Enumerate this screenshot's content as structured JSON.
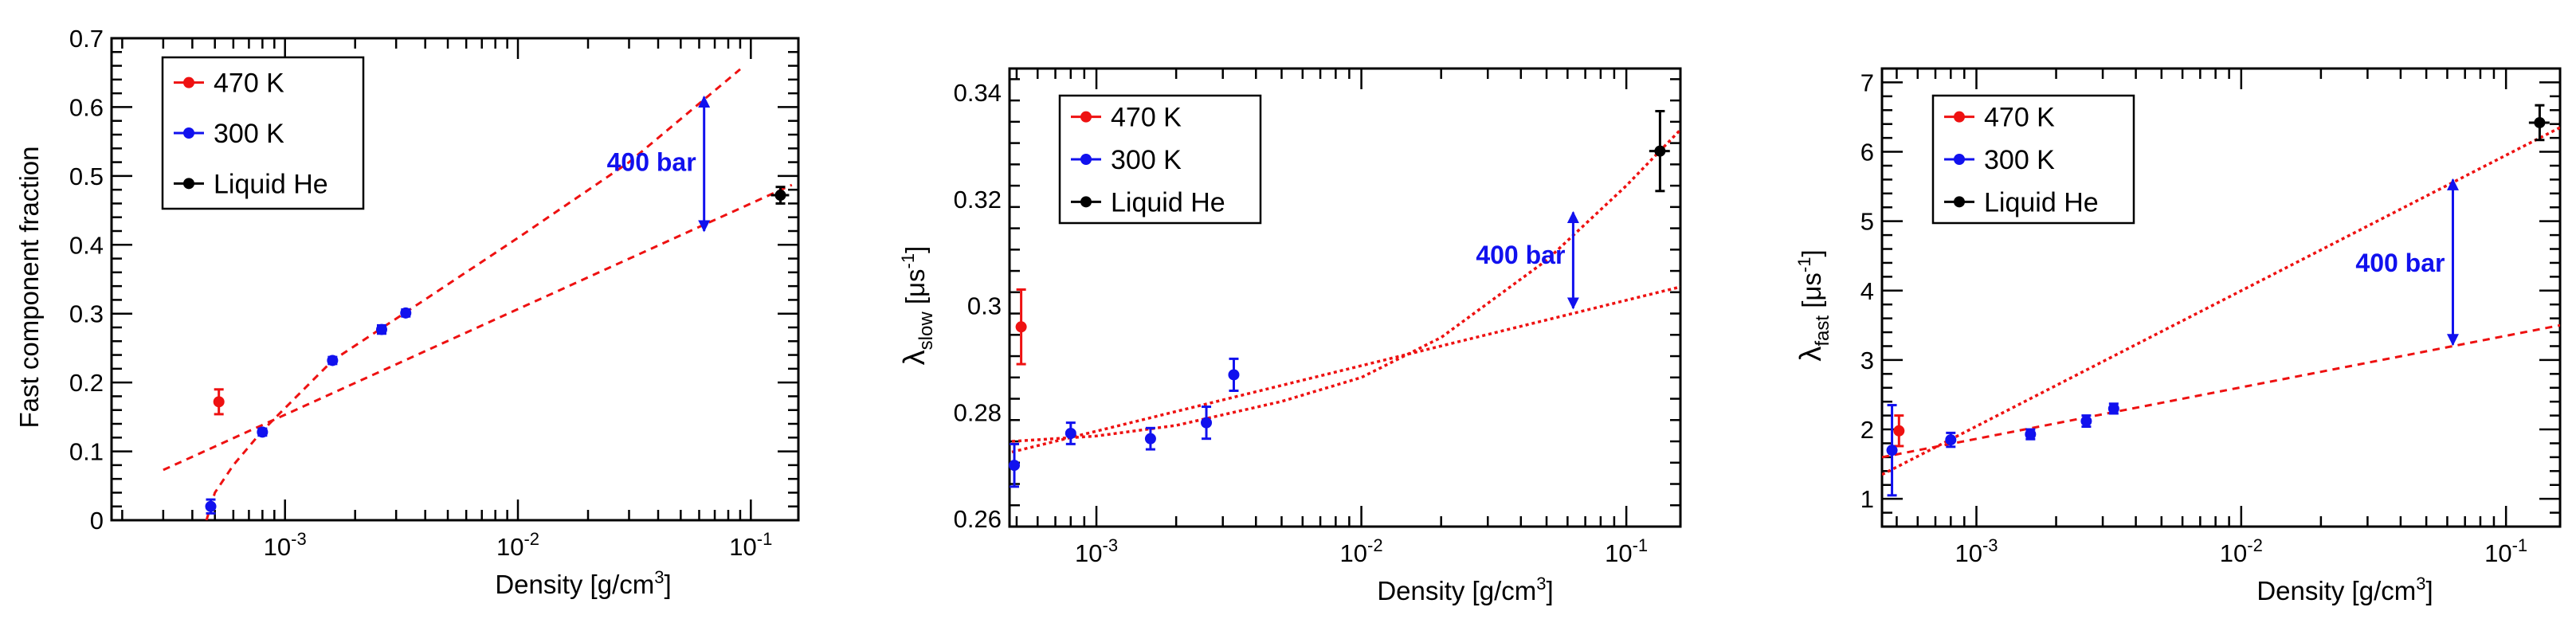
{
  "colors": {
    "red": "#ee1111",
    "blue": "#1111ee",
    "black": "#000000",
    "fit": "#ee1111",
    "arrow": "#1111ee"
  },
  "chart_data": [
    {
      "type": "scatter",
      "xlabel_main": "Density [g/cm",
      "xlabel_sup": "3",
      "xlabel_close": "]",
      "ylabel": "Fast component fraction",
      "xscale": "log",
      "xlim": [
        0.00018,
        0.16
      ],
      "ylim": [
        0,
        0.7
      ],
      "yticks": [
        0,
        0.1,
        0.2,
        0.3,
        0.4,
        0.5,
        0.6,
        0.7
      ],
      "ytick_labels": [
        "0",
        "0.1",
        "0.2",
        "0.3",
        "0.4",
        "0.5",
        "0.6",
        "0.7"
      ],
      "xtick_labels": [
        {
          "base": "10",
          "exp": "-3",
          "value": 0.001
        },
        {
          "base": "10",
          "exp": "-2",
          "value": 0.01
        },
        {
          "base": "10",
          "exp": "-1",
          "value": 0.1
        }
      ],
      "legend": [
        {
          "label": "470 K",
          "color": "#ee1111"
        },
        {
          "label": "300 K",
          "color": "#1111ee"
        },
        {
          "label": "Liquid He",
          "color": "#000000"
        }
      ],
      "series": [
        {
          "name": "470 K",
          "color": "#ee1111",
          "points": [
            {
              "x": 0.00052,
              "y": 0.172,
              "ey": 0.018
            }
          ]
        },
        {
          "name": "300 K",
          "color": "#1111ee",
          "points": [
            {
              "x": 0.00048,
              "y": 0.02,
              "ey": 0.01
            },
            {
              "x": 0.0008,
              "y": 0.128,
              "ey": 0.005
            },
            {
              "x": 0.0016,
              "y": 0.232,
              "ey": 0.005
            },
            {
              "x": 0.0026,
              "y": 0.277,
              "ey": 0.006
            },
            {
              "x": 0.0033,
              "y": 0.301,
              "ey": 0.005
            }
          ]
        },
        {
          "name": "Liquid He",
          "color": "#000000",
          "points": [
            {
              "x": 0.134,
              "y": 0.472,
              "ey": 0.012,
              "exlo": 0.122,
              "exhi": 0.146
            }
          ]
        }
      ],
      "fits": [
        {
          "kind": "log-line",
          "x0": 0.0003,
          "y0": 0.073,
          "x1": 0.15,
          "y1": 0.487,
          "style": "dashed"
        },
        {
          "kind": "curve",
          "points": [
            [
              0.00046,
              0.0
            ],
            [
              0.0005,
              0.04
            ],
            [
              0.0006,
              0.08
            ],
            [
              0.0008,
              0.13
            ],
            [
              0.0016,
              0.232
            ],
            [
              0.0033,
              0.302
            ],
            [
              0.01,
              0.41
            ],
            [
              0.03,
              0.52
            ],
            [
              0.09,
              0.655
            ]
          ],
          "style": "dashed"
        }
      ],
      "annotation": {
        "text": "400 bar",
        "x": 0.063,
        "y_top": 0.615,
        "y_bottom": 0.42,
        "label_y": 0.52
      }
    },
    {
      "type": "scatter",
      "xlabel_main": "Density [g/cm",
      "xlabel_sup": "3",
      "xlabel_close": "]",
      "ylabel_main": "λ",
      "ylabel_sub": "slow",
      "ylabel_unit": " [μs",
      "ylabel_sup": "-1",
      "ylabel_close": "]",
      "xscale": "log",
      "xlim": [
        0.00047,
        0.16
      ],
      "ylim": [
        0.2585,
        0.3445
      ],
      "yticks": [
        0.26,
        0.28,
        0.3,
        0.32,
        0.34
      ],
      "ytick_labels": [
        "0.26",
        "0.28",
        "0.3",
        "0.32",
        "0.34"
      ],
      "xtick_labels": [
        {
          "base": "10",
          "exp": "-3",
          "value": 0.001
        },
        {
          "base": "10",
          "exp": "-2",
          "value": 0.01
        },
        {
          "base": "10",
          "exp": "-1",
          "value": 0.1
        }
      ],
      "legend": [
        {
          "label": "470 K",
          "color": "#ee1111"
        },
        {
          "label": "300 K",
          "color": "#1111ee"
        },
        {
          "label": "Liquid He",
          "color": "#000000"
        }
      ],
      "series": [
        {
          "name": "470 K",
          "color": "#ee1111",
          "points": [
            {
              "x": 0.00052,
              "y": 0.296,
              "ey": 0.007
            }
          ]
        },
        {
          "name": "300 K",
          "color": "#1111ee",
          "points": [
            {
              "x": 0.00049,
              "y": 0.27,
              "ey": 0.004
            },
            {
              "x": 0.0008,
              "y": 0.276,
              "ey": 0.002
            },
            {
              "x": 0.0016,
              "y": 0.275,
              "ey": 0.002
            },
            {
              "x": 0.0026,
              "y": 0.278,
              "ey": 0.003
            },
            {
              "x": 0.0033,
              "y": 0.287,
              "ey": 0.003
            }
          ]
        },
        {
          "name": "Liquid He",
          "color": "#000000",
          "points": [
            {
              "x": 0.134,
              "y": 0.329,
              "ey": 0.0075,
              "exlo": 0.122,
              "exhi": 0.146
            }
          ]
        }
      ],
      "fits": [
        {
          "kind": "log-line",
          "x0": 0.00048,
          "y0": 0.2725,
          "x1": 0.16,
          "y1": 0.3035,
          "style": "dotted"
        },
        {
          "kind": "curve",
          "points": [
            [
              0.00048,
              0.2745
            ],
            [
              0.001,
              0.2755
            ],
            [
              0.002,
              0.2775
            ],
            [
              0.005,
              0.282
            ],
            [
              0.01,
              0.2865
            ],
            [
              0.02,
              0.294
            ],
            [
              0.05,
              0.3085
            ],
            [
              0.1,
              0.3225
            ],
            [
              0.16,
              0.333
            ]
          ],
          "style": "dotted"
        }
      ],
      "annotation": {
        "text": "400 bar",
        "x": 0.063,
        "y_top": 0.3175,
        "y_bottom": 0.2995,
        "label_y": 0.3095
      }
    },
    {
      "type": "scatter",
      "xlabel_main": "Density [g/cm",
      "xlabel_sup": "3",
      "xlabel_close": "]",
      "ylabel_main": "λ",
      "ylabel_sub": "fast",
      "ylabel_unit": " [μs",
      "ylabel_sup": "-1",
      "ylabel_close": "]",
      "xscale": "log",
      "xlim": [
        0.00044,
        0.16
      ],
      "ylim": [
        0.6,
        7.2
      ],
      "yticks": [
        1,
        2,
        3,
        4,
        5,
        6,
        7
      ],
      "ytick_labels": [
        "1",
        "2",
        "3",
        "4",
        "5",
        "6",
        "7"
      ],
      "xtick_labels": [
        {
          "base": "10",
          "exp": "-3",
          "value": 0.001
        },
        {
          "base": "10",
          "exp": "-2",
          "value": 0.01
        },
        {
          "base": "10",
          "exp": "-1",
          "value": 0.1
        }
      ],
      "legend": [
        {
          "label": "470 K",
          "color": "#ee1111"
        },
        {
          "label": "300 K",
          "color": "#1111ee"
        },
        {
          "label": "Liquid He",
          "color": "#000000"
        }
      ],
      "series": [
        {
          "name": "470 K",
          "color": "#ee1111",
          "points": [
            {
              "x": 0.00051,
              "y": 1.98,
              "ey": 0.22
            }
          ]
        },
        {
          "name": "300 K",
          "color": "#1111ee",
          "points": [
            {
              "x": 0.00048,
              "y": 1.7,
              "ey": 0.65
            },
            {
              "x": 0.0008,
              "y": 1.85,
              "ey": 0.1
            },
            {
              "x": 0.0016,
              "y": 1.93,
              "ey": 0.07
            },
            {
              "x": 0.0026,
              "y": 2.12,
              "ey": 0.08
            },
            {
              "x": 0.0033,
              "y": 2.3,
              "ey": 0.07
            }
          ]
        },
        {
          "name": "Liquid He",
          "color": "#000000",
          "points": [
            {
              "x": 0.134,
              "y": 6.42,
              "ey": 0.25,
              "exlo": 0.122,
              "exhi": 0.146
            }
          ]
        }
      ],
      "fits": [
        {
          "kind": "log-line",
          "x0": 0.00044,
          "y0": 1.6,
          "x1": 0.16,
          "y1": 3.5,
          "style": "dashed"
        },
        {
          "kind": "log-line",
          "x0": 0.00044,
          "y0": 1.35,
          "x1": 0.16,
          "y1": 6.35,
          "style": "dotted"
        }
      ],
      "annotation": {
        "text": "400 bar",
        "x": 0.063,
        "y_top": 5.6,
        "y_bottom": 3.22,
        "label_y": 4.4
      }
    }
  ]
}
